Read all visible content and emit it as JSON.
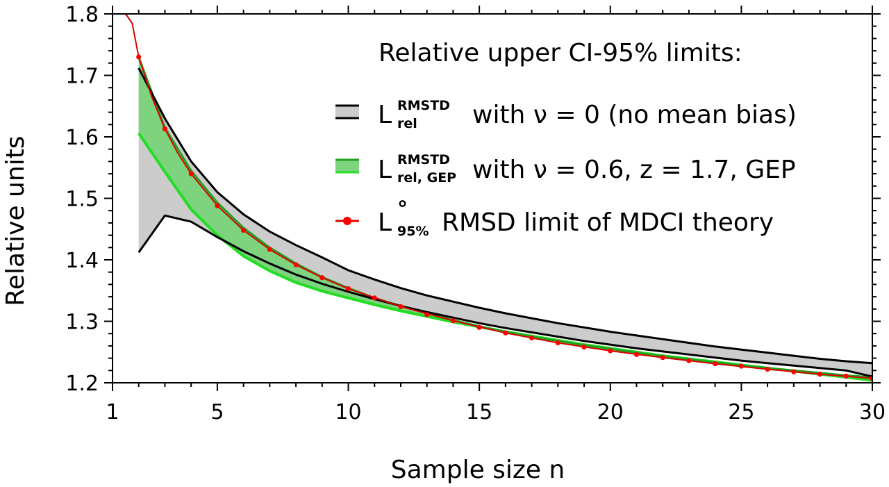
{
  "chart_data": {
    "type": "line",
    "xlabel": "Sample size n",
    "ylabel": "Relative units",
    "xlim": [
      1,
      30
    ],
    "ylim": [
      1.2,
      1.8
    ],
    "x_ticks": [
      1,
      5,
      10,
      15,
      20,
      25,
      30
    ],
    "x_minor_step": 1,
    "y_ticks": [
      1.2,
      1.3,
      1.4,
      1.5,
      1.6,
      1.7,
      1.8
    ],
    "y_tick_labels": [
      "1.2",
      "1.3",
      "1.4",
      "1.5",
      "1.6",
      "1.7",
      "1.8"
    ],
    "y_minor_step": 0.02,
    "grid": false,
    "legend_placement": "top-right",
    "legend": {
      "title": "Relative upper CI-95% limits:",
      "entries": [
        {
          "symbol": "L",
          "sup": "RMSTD",
          "sub": "rel",
          "text": "with ν = 0 (no mean bias)"
        },
        {
          "symbol": "L",
          "sup": "RMSTD",
          "sub": "rel, GEP",
          "text": "with ν = 0.6, z = 1.7, GEP"
        },
        {
          "symbol": "L",
          "sup": "°",
          "sub": "95%",
          "text": "RMSD limit of MDCI theory"
        }
      ]
    },
    "colors": {
      "gray_band_fill": "#cccccc",
      "gray_band_edge": "#000000",
      "green_band_fill": "#7ed37e",
      "green_band_edge": "#1fa11f",
      "green_lower_edge": "#22dd22",
      "theory_line": "#dd0000",
      "theory_marker": "#ff0000"
    },
    "series": [
      {
        "role": "gray-band-upper",
        "x": [
          2,
          3,
          4,
          5,
          6,
          7,
          8,
          9,
          10,
          11,
          12,
          13,
          14,
          15,
          16,
          17,
          18,
          19,
          20,
          21,
          22,
          23,
          24,
          25,
          26,
          27,
          28,
          29,
          30
        ],
        "values": [
          1.712,
          1.63,
          1.56,
          1.51,
          1.474,
          1.446,
          1.424,
          1.404,
          1.383,
          1.368,
          1.354,
          1.342,
          1.332,
          1.322,
          1.313,
          1.305,
          1.297,
          1.29,
          1.283,
          1.277,
          1.271,
          1.265,
          1.259,
          1.254,
          1.249,
          1.244,
          1.239,
          1.235,
          1.232
        ]
      },
      {
        "role": "gray-band-lower",
        "x": [
          2,
          3,
          4,
          5,
          6,
          7,
          8,
          9,
          10,
          11,
          12,
          13,
          14,
          15,
          16,
          17,
          18,
          19,
          20,
          21,
          22,
          23,
          24,
          25,
          26,
          27,
          28,
          29,
          30
        ],
        "values": [
          1.412,
          1.472,
          1.462,
          1.437,
          1.414,
          1.394,
          1.376,
          1.361,
          1.348,
          1.336,
          1.325,
          1.315,
          1.306,
          1.297,
          1.289,
          1.282,
          1.275,
          1.268,
          1.262,
          1.256,
          1.251,
          1.246,
          1.241,
          1.236,
          1.232,
          1.228,
          1.224,
          1.22,
          1.21
        ]
      },
      {
        "role": "green-band-upper",
        "x": [
          2,
          3,
          4,
          5,
          6,
          7,
          8,
          9,
          10,
          11,
          12,
          13,
          14,
          15,
          16,
          17,
          18,
          19,
          20,
          21,
          22,
          23,
          24,
          25,
          26,
          27,
          28,
          29,
          30
        ],
        "values": [
          1.73,
          1.615,
          1.545,
          1.493,
          1.452,
          1.42,
          1.394,
          1.372,
          1.354,
          1.338,
          1.325,
          1.313,
          1.302,
          1.292,
          1.283,
          1.275,
          1.268,
          1.261,
          1.255,
          1.249,
          1.243,
          1.238,
          1.233,
          1.228,
          1.224,
          1.22,
          1.216,
          1.212,
          1.209
        ]
      },
      {
        "role": "green-band-lower",
        "x": [
          2,
          3,
          4,
          5,
          6,
          7,
          8,
          9,
          10,
          11,
          12,
          13,
          14,
          15,
          16,
          17,
          18,
          19,
          20,
          21,
          22,
          23,
          24,
          25,
          26,
          27,
          28,
          29,
          30
        ],
        "values": [
          1.606,
          1.543,
          1.482,
          1.44,
          1.406,
          1.382,
          1.363,
          1.349,
          1.338,
          1.327,
          1.317,
          1.308,
          1.299,
          1.291,
          1.283,
          1.276,
          1.269,
          1.262,
          1.256,
          1.25,
          1.244,
          1.239,
          1.234,
          1.229,
          1.224,
          1.219,
          1.214,
          1.209,
          1.204
        ]
      },
      {
        "role": "theory-curve",
        "x": [
          1.5,
          1.75,
          2,
          2.5,
          3,
          3.5,
          4,
          5,
          6,
          7,
          8,
          9,
          10,
          12,
          14,
          16,
          18,
          20,
          22,
          24,
          26,
          28,
          30
        ],
        "values": [
          1.8,
          1.785,
          1.73,
          1.665,
          1.613,
          1.573,
          1.54,
          1.488,
          1.448,
          1.417,
          1.392,
          1.371,
          1.353,
          1.324,
          1.301,
          1.281,
          1.265,
          1.252,
          1.241,
          1.231,
          1.222,
          1.214,
          1.207
        ]
      },
      {
        "role": "theory-markers",
        "x": [
          2,
          3,
          4,
          5,
          6,
          7,
          8,
          9,
          10,
          11,
          12,
          13,
          14,
          15,
          16,
          17,
          18,
          19,
          20,
          21,
          22,
          23,
          24,
          25,
          26,
          27,
          28,
          29,
          30
        ],
        "values": [
          1.73,
          1.613,
          1.54,
          1.488,
          1.448,
          1.417,
          1.392,
          1.371,
          1.353,
          1.338,
          1.324,
          1.311,
          1.301,
          1.29,
          1.281,
          1.273,
          1.265,
          1.258,
          1.252,
          1.246,
          1.241,
          1.236,
          1.231,
          1.227,
          1.222,
          1.218,
          1.214,
          1.211,
          1.207
        ]
      }
    ]
  }
}
